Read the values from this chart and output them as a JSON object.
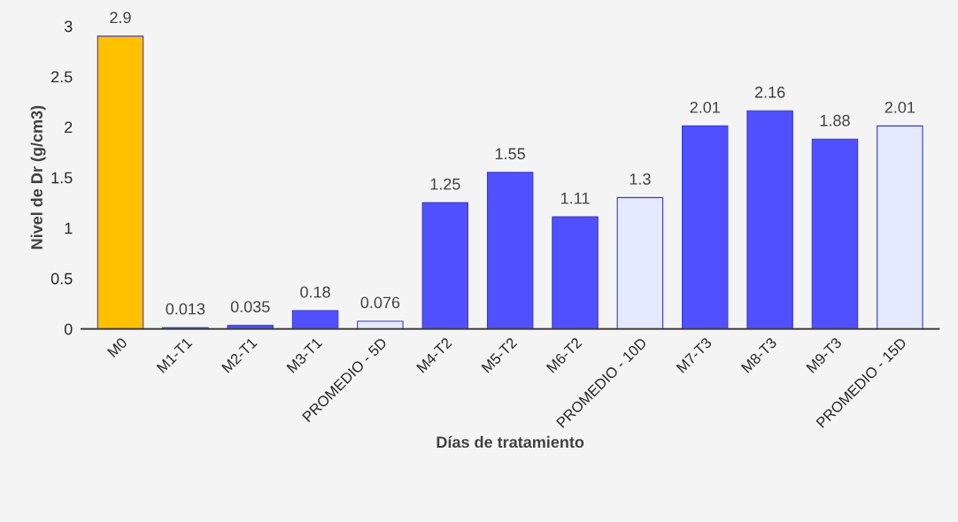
{
  "chart_data": {
    "type": "bar",
    "xlabel": "Días de tratamiento",
    "ylabel": "Nivel de Dr (g/cm3)",
    "categories": [
      "M0",
      "M1-T1",
      "M2-T1",
      "M3-T1",
      "PROMEDIO - 5D",
      "M4-T2",
      "M5-T2",
      "M6-T2",
      "PROMEDIO - 10D",
      "M7-T3",
      "M8-T3",
      "M9-T3",
      "PROMEDIO - 15D"
    ],
    "values": [
      2.9,
      0.013,
      0.035,
      0.18,
      0.076,
      1.25,
      1.55,
      1.11,
      1.3,
      2.01,
      2.16,
      1.88,
      2.01
    ],
    "colors": [
      "#ffc000",
      "#5050ff",
      "#5050ff",
      "#5050ff",
      "#e4eaff",
      "#5050ff",
      "#5050ff",
      "#5050ff",
      "#e4eaff",
      "#5050ff",
      "#5050ff",
      "#5050ff",
      "#e4eaff"
    ],
    "ylim": [
      0,
      3
    ],
    "yticks": [
      0,
      0.5,
      1,
      1.5,
      2,
      2.5,
      3
    ],
    "data_labels": true,
    "grid": false,
    "legend": false
  }
}
